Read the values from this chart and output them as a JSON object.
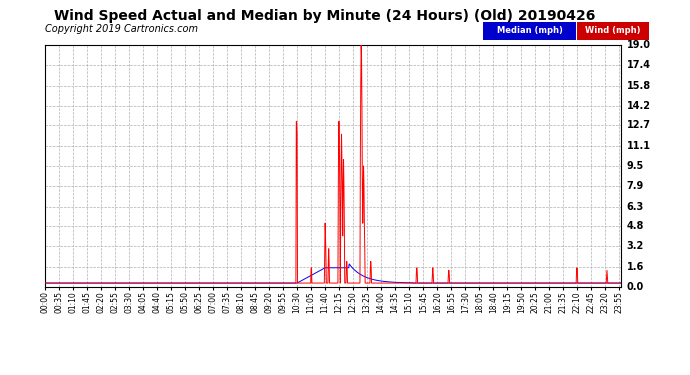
{
  "title": "Wind Speed Actual and Median by Minute (24 Hours) (Old) 20190426",
  "copyright": "Copyright 2019 Cartronics.com",
  "ylabel_values": [
    0.0,
    1.6,
    3.2,
    4.8,
    6.3,
    7.9,
    9.5,
    11.1,
    12.7,
    14.2,
    15.8,
    17.4,
    19.0
  ],
  "ymax": 19.0,
  "ymin": 0.0,
  "background_color": "#ffffff",
  "plot_bg": "#ffffff",
  "grid_color": "#b0b0b0",
  "title_fontsize": 10,
  "copyright_fontsize": 7,
  "tick_fontsize": 5.5,
  "ytick_fontsize": 7
}
